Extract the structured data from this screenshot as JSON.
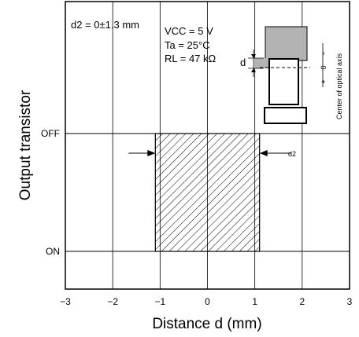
{
  "chart_data": {
    "type": "step",
    "title": "",
    "xlabel": "Distance d (mm)",
    "ylabel": "Output transistor",
    "xlim": [
      -3,
      3
    ],
    "x_ticks": [
      "−3",
      "−2",
      "−1",
      "0",
      "1",
      "2",
      "3"
    ],
    "y_states": [
      "OFF",
      "ON"
    ],
    "grid": "vertical lines at integer x",
    "switching_band": {
      "x_from": -1.1,
      "x_to": 1.1,
      "fill": "hatched"
    },
    "d2_spec": "d2 = 0±1.3 mm",
    "d2_marker_label": "d2",
    "conditions": {
      "vcc": "VCC = 5 V",
      "ta": "Ta = 25°C",
      "rl": "RL = 47 kΩ"
    },
    "inset": {
      "d_label": "d",
      "scale_minus": "−",
      "scale_zero": "0",
      "scale_plus": "+",
      "axis_label": "Center of optical axis"
    }
  }
}
